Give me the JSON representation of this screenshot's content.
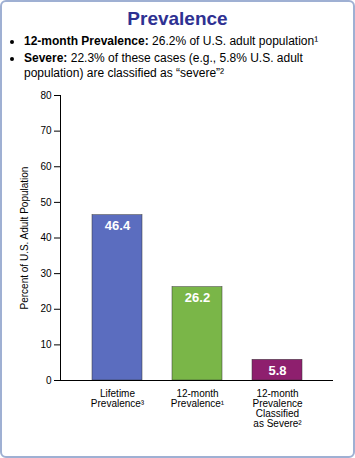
{
  "chart_data": {
    "type": "bar",
    "title": "Prevalence",
    "annotations": [
      [
        "12-month Prevalence:",
        " 26.2% of U.S. adult population¹"
      ],
      [
        "Severe:",
        " 22.3% of these cases (e.g., 5.8% U.S. adult population) are classified as “severe”²"
      ]
    ],
    "categories": [
      "Lifetime Prevalence³",
      "12-month Prevalence¹",
      "12-month Prevalence Classified as Severe²"
    ],
    "values": [
      46.4,
      26.2,
      5.8
    ],
    "colors": [
      "#5b6dbf",
      "#7ab648",
      "#8e1f6e"
    ],
    "ylabel": "Percent of U.S. Adult Population",
    "ylim": [
      0,
      80
    ],
    "yticks": [
      0,
      10,
      20,
      30,
      40,
      50,
      60,
      70,
      80
    ],
    "grid": false,
    "data_labels": true
  }
}
